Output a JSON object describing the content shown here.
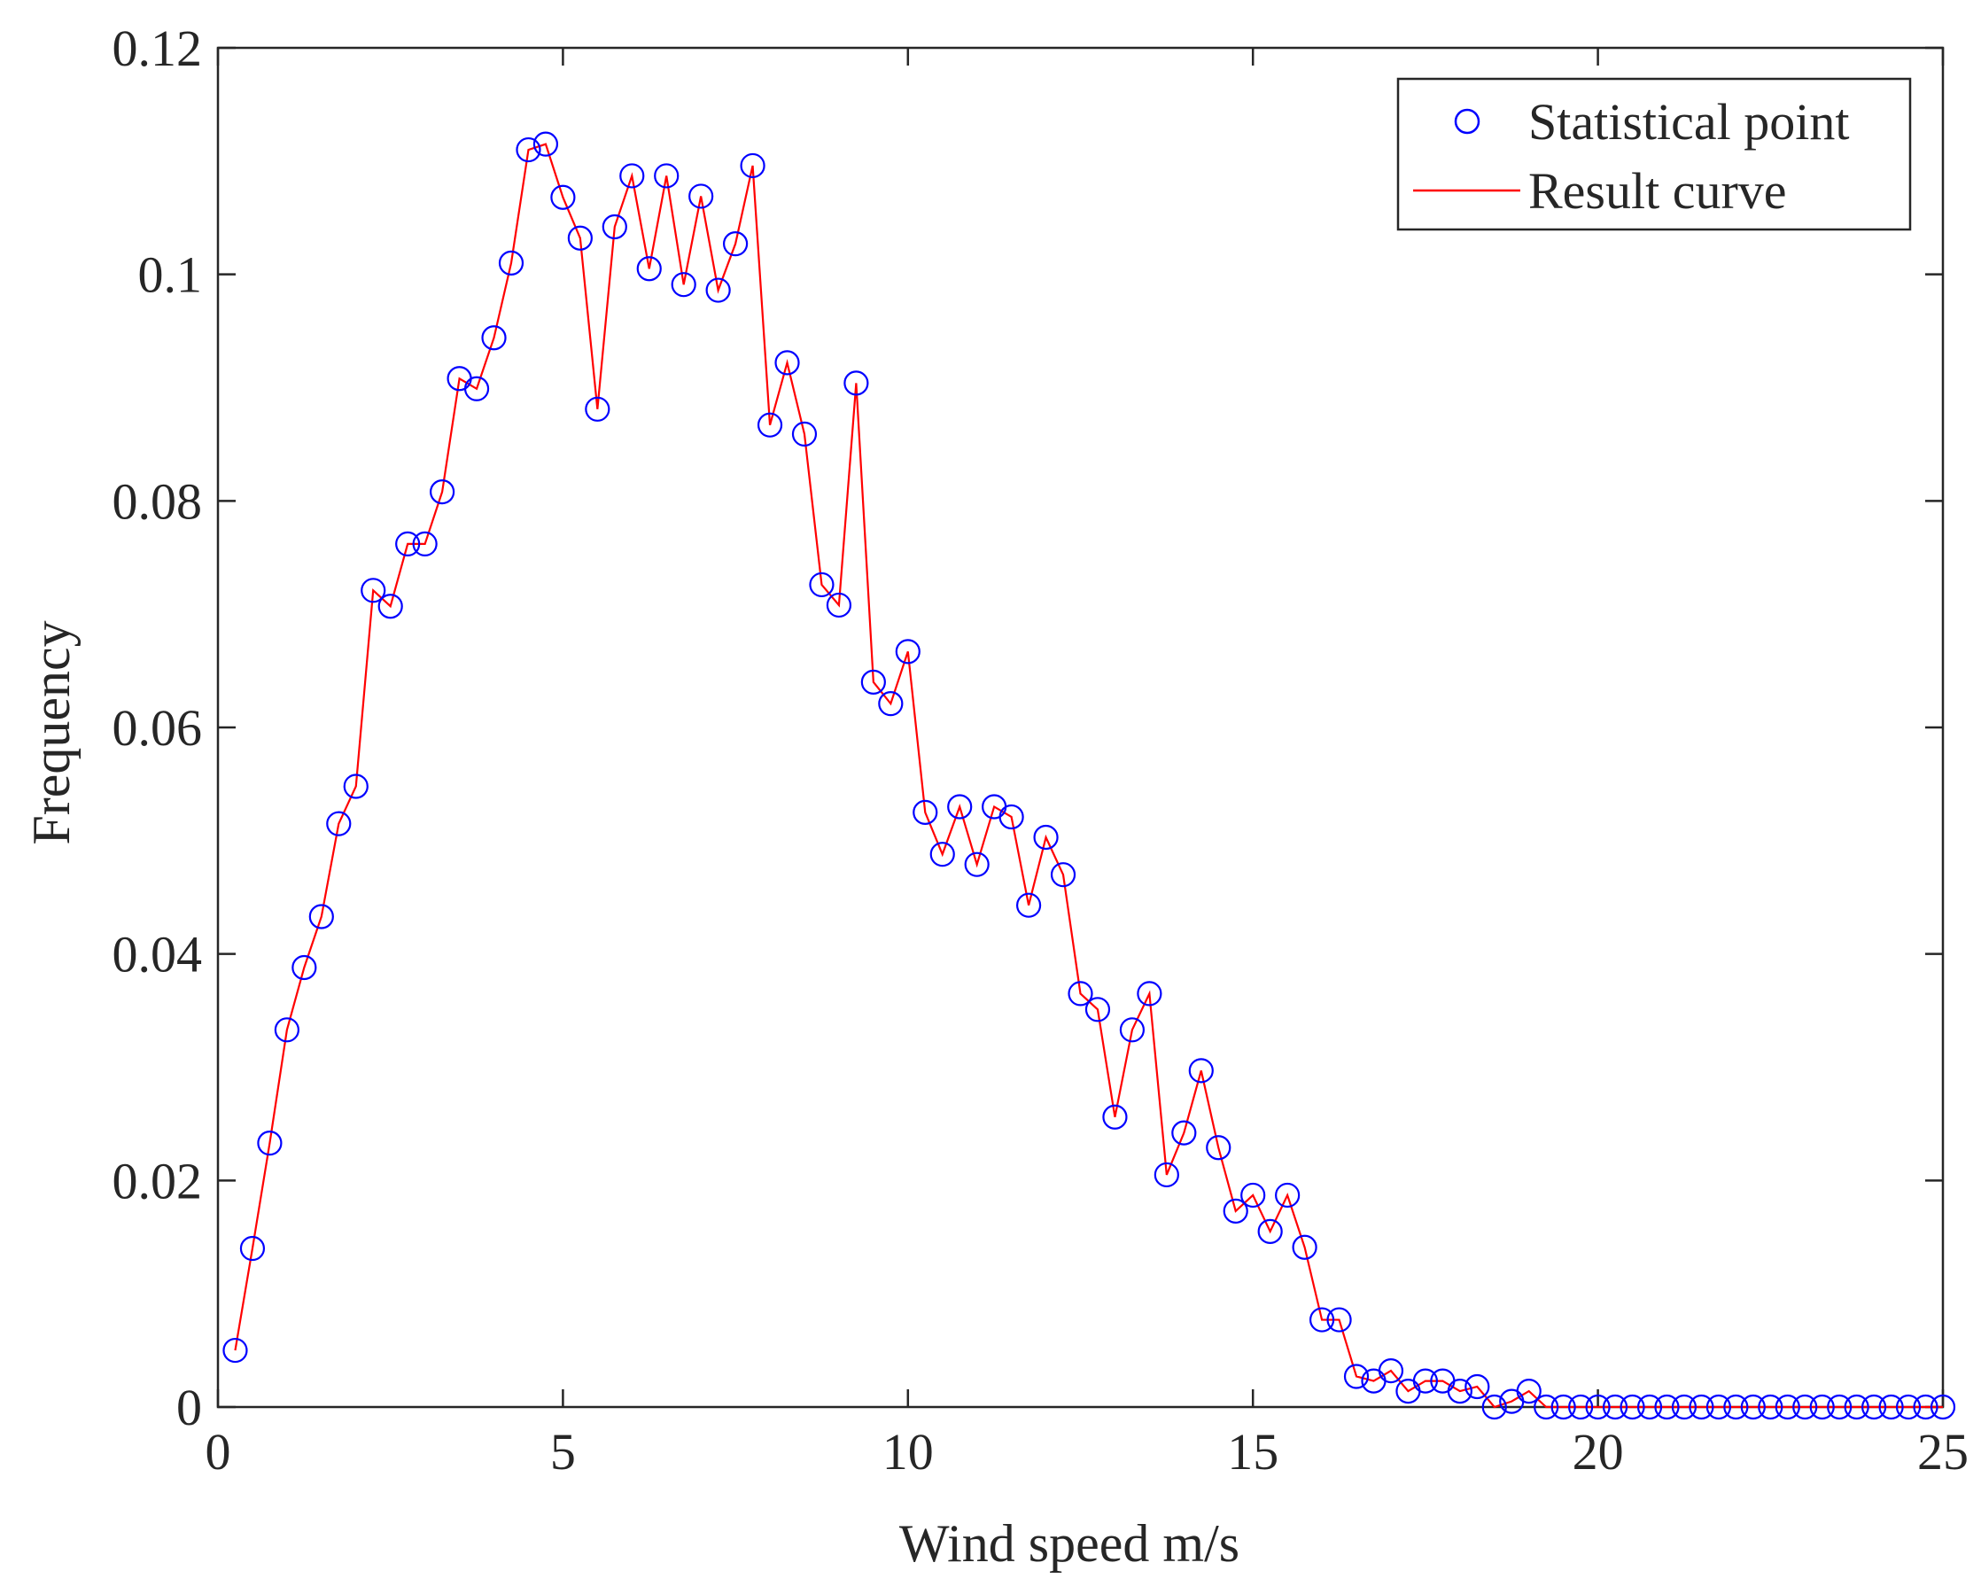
{
  "chart_data": {
    "type": "line",
    "title": "",
    "xlabel": "Wind speed m/s",
    "ylabel": "Frequency",
    "xlim": [
      0,
      25
    ],
    "ylim": [
      0,
      0.12
    ],
    "xticks": [
      0,
      5,
      10,
      15,
      20,
      25
    ],
    "xtick_labels": [
      "0",
      "5",
      "10",
      "15",
      "20",
      "25"
    ],
    "yticks": [
      0,
      0.02,
      0.04,
      0.06,
      0.08,
      0.1,
      0.12
    ],
    "ytick_labels": [
      "0",
      "0.02",
      "0.04",
      "0.06",
      "0.08",
      "0.1",
      "0.12"
    ],
    "grid": false,
    "legend_position": "top-right",
    "x": [
      0.25,
      0.5,
      0.75,
      1,
      1.25,
      1.5,
      1.75,
      2,
      2.25,
      2.5,
      2.75,
      3,
      3.25,
      3.5,
      3.75,
      4,
      4.25,
      4.5,
      4.75,
      5,
      5.25,
      5.5,
      5.75,
      6,
      6.25,
      6.5,
      6.75,
      7,
      7.25,
      7.5,
      7.75,
      8,
      8.25,
      8.5,
      8.75,
      9,
      9.25,
      9.5,
      9.75,
      10,
      10.25,
      10.5,
      10.75,
      11,
      11.25,
      11.5,
      11.75,
      12,
      12.25,
      12.5,
      12.75,
      13,
      13.25,
      13.5,
      13.75,
      14,
      14.25,
      14.5,
      14.75,
      15,
      15.25,
      15.5,
      15.75,
      16,
      16.25,
      16.5,
      16.75,
      17,
      17.25,
      17.5,
      17.75,
      18,
      18.25,
      18.5,
      18.75,
      19,
      19.25,
      19.5,
      19.75,
      20,
      20.25,
      20.5,
      20.75,
      21,
      21.25,
      21.5,
      21.75,
      22,
      22.25,
      22.5,
      22.75,
      23,
      23.25,
      23.5,
      23.75,
      24,
      24.25,
      24.5,
      24.75,
      25
    ],
    "series": [
      {
        "name": "Statistical point",
        "style": "marker",
        "color": "#0000ff",
        "values": [
          0.005,
          0.014,
          0.0233,
          0.0333,
          0.0388,
          0.0433,
          0.0515,
          0.0548,
          0.0721,
          0.0707,
          0.0762,
          0.0762,
          0.0808,
          0.0908,
          0.0899,
          0.0944,
          0.101,
          0.111,
          0.1115,
          0.1068,
          0.1032,
          0.0881,
          0.1042,
          0.1087,
          0.1005,
          0.1087,
          0.0991,
          0.1069,
          0.0986,
          0.1027,
          0.1096,
          0.0867,
          0.0922,
          0.0859,
          0.0726,
          0.0708,
          0.0904,
          0.064,
          0.0621,
          0.0667,
          0.0525,
          0.0488,
          0.053,
          0.0479,
          0.053,
          0.0521,
          0.0443,
          0.0503,
          0.047,
          0.0365,
          0.0351,
          0.0256,
          0.0333,
          0.0365,
          0.0205,
          0.0242,
          0.0297,
          0.0229,
          0.0173,
          0.0187,
          0.0155,
          0.0187,
          0.0141,
          0.0077,
          0.0077,
          0.0027,
          0.0023,
          0.0032,
          0.0014,
          0.0023,
          0.0023,
          0.0014,
          0.0018,
          0.0,
          0.0005,
          0.0014,
          0.0,
          0.0,
          0.0,
          0.0,
          0.0,
          0.0,
          0.0,
          0.0,
          0.0,
          0.0,
          0.0,
          0.0,
          0.0,
          0.0,
          0.0,
          0.0,
          0.0,
          0.0,
          0.0,
          0.0,
          0.0,
          0.0,
          0.0,
          0.0
        ]
      },
      {
        "name": "Result curve",
        "style": "line",
        "color": "#ff0000",
        "values": [
          0.005,
          0.014,
          0.0233,
          0.0333,
          0.0388,
          0.0433,
          0.0515,
          0.0548,
          0.0721,
          0.0707,
          0.0762,
          0.0762,
          0.0808,
          0.0908,
          0.0899,
          0.0944,
          0.101,
          0.111,
          0.1115,
          0.1068,
          0.1032,
          0.0881,
          0.1042,
          0.1087,
          0.1005,
          0.1087,
          0.0991,
          0.1069,
          0.0986,
          0.1027,
          0.1096,
          0.0867,
          0.0922,
          0.0859,
          0.0726,
          0.0708,
          0.0904,
          0.064,
          0.0621,
          0.0667,
          0.0525,
          0.0488,
          0.053,
          0.0479,
          0.053,
          0.0521,
          0.0443,
          0.0503,
          0.047,
          0.0365,
          0.0351,
          0.0256,
          0.0333,
          0.0365,
          0.0205,
          0.0242,
          0.0297,
          0.0229,
          0.0173,
          0.0187,
          0.0155,
          0.0187,
          0.0141,
          0.0077,
          0.0077,
          0.0027,
          0.0023,
          0.0032,
          0.0014,
          0.0023,
          0.0023,
          0.0014,
          0.0018,
          0.0,
          0.0005,
          0.0014,
          0.0,
          0.0,
          0.0,
          0.0,
          0.0,
          0.0,
          0.0,
          0.0,
          0.0,
          0.0,
          0.0,
          0.0,
          0.0,
          0.0,
          0.0,
          0.0,
          0.0,
          0.0,
          0.0,
          0.0,
          0.0,
          0.0,
          0.0,
          0.0
        ]
      }
    ]
  }
}
